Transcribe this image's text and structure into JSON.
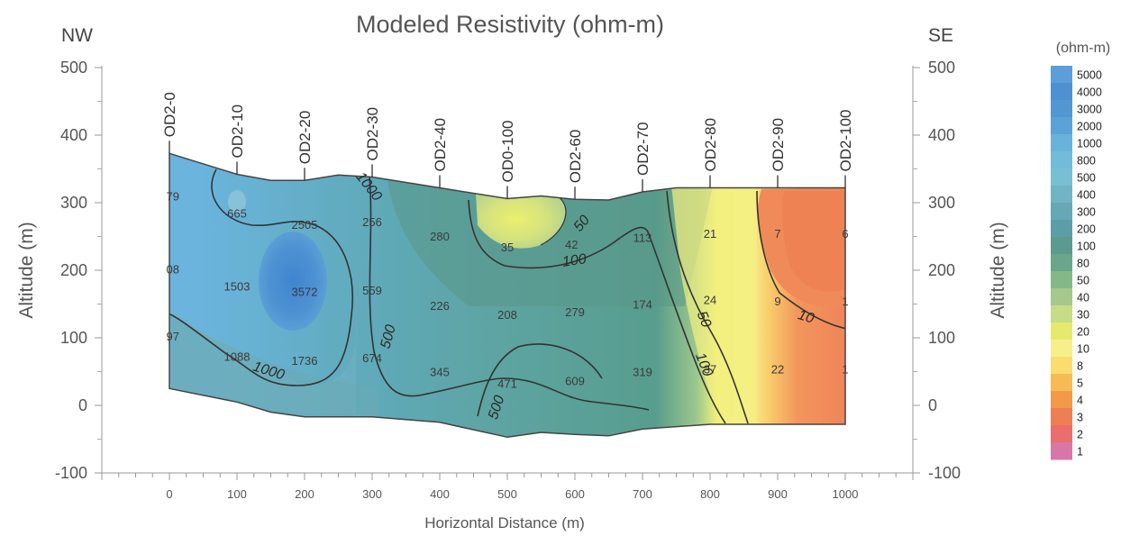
{
  "chart_data": {
    "type": "heatmap",
    "title": "Modeled Resistivity (ohm-m)",
    "left_direction": "NW",
    "right_direction": "SE",
    "xlabel": "Horizontal Distance (m)",
    "ylabel": "Altitude (m)",
    "xlim": [
      -100,
      1100
    ],
    "ylim": [
      -100,
      500
    ],
    "x_ticks": [
      0,
      100,
      200,
      300,
      400,
      500,
      600,
      700,
      800,
      900,
      1000
    ],
    "y_ticks": [
      -100,
      0,
      100,
      200,
      300,
      400,
      500
    ],
    "y_tick_labels": [
      "-100",
      "0",
      "100",
      "200",
      "300",
      "400",
      "500"
    ],
    "stations": [
      {
        "name": "OD2-0",
        "x": 0
      },
      {
        "name": "OD2-10",
        "x": 100
      },
      {
        "name": "OD2-20",
        "x": 200
      },
      {
        "name": "OD2-30",
        "x": 300
      },
      {
        "name": "OD2-40",
        "x": 400
      },
      {
        "name": "OD0-100",
        "x": 500
      },
      {
        "name": "OD2-60",
        "x": 600
      },
      {
        "name": "OD2-70",
        "x": 700
      },
      {
        "name": "OD2-80",
        "x": 800
      },
      {
        "name": "OD2-90",
        "x": 900
      },
      {
        "name": "OD2-100",
        "x": 1000
      }
    ],
    "surface_profile": [
      [
        0,
        373
      ],
      [
        100,
        342
      ],
      [
        150,
        333
      ],
      [
        200,
        333
      ],
      [
        250,
        341
      ],
      [
        300,
        338
      ],
      [
        400,
        322
      ],
      [
        500,
        306
      ],
      [
        550,
        310
      ],
      [
        600,
        305
      ],
      [
        650,
        304
      ],
      [
        700,
        316
      ],
      [
        750,
        322
      ],
      [
        800,
        322
      ],
      [
        900,
        322
      ],
      [
        1000,
        322
      ]
    ],
    "bottom_profile": [
      [
        0,
        25
      ],
      [
        100,
        5
      ],
      [
        150,
        -10
      ],
      [
        200,
        -17
      ],
      [
        300,
        -17
      ],
      [
        400,
        -25
      ],
      [
        500,
        -47
      ],
      [
        550,
        -40
      ],
      [
        600,
        -43
      ],
      [
        650,
        -45
      ],
      [
        700,
        -35
      ],
      [
        800,
        -28
      ],
      [
        1000,
        -28
      ]
    ],
    "colorbar": {
      "title": "(ohm-m)",
      "levels": [
        "5000",
        "4000",
        "3000",
        "2000",
        "1000",
        "800",
        "500",
        "400",
        "300",
        "200",
        "100",
        "80",
        "50",
        "40",
        "30",
        "20",
        "10",
        "8",
        "5",
        "4",
        "3",
        "2",
        "1"
      ],
      "colors": [
        "#5b9ed9",
        "#4f90d0",
        "#5297d1",
        "#5ba2d6",
        "#6bb2db",
        "#73bbd9",
        "#78bfd3",
        "#71b4c4",
        "#66a8b5",
        "#5d9ea6",
        "#5d9a8e",
        "#6aa58c",
        "#85b889",
        "#a5c98a",
        "#c8db86",
        "#e5ea6e",
        "#f7f089",
        "#fbdc70",
        "#f7bb55",
        "#f39a4a",
        "#ee7f54",
        "#e96e6d",
        "#d877a6"
      ]
    },
    "values": [
      {
        "label": "79",
        "x": 5,
        "y": 310
      },
      {
        "label": "665",
        "x": 100,
        "y": 285
      },
      {
        "label": "2505",
        "x": 200,
        "y": 268
      },
      {
        "label": "256",
        "x": 300,
        "y": 272
      },
      {
        "label": "280",
        "x": 400,
        "y": 251
      },
      {
        "label": "35",
        "x": 500,
        "y": 235
      },
      {
        "label": "42",
        "x": 595,
        "y": 239
      },
      {
        "label": "113",
        "x": 700,
        "y": 249
      },
      {
        "label": "21",
        "x": 800,
        "y": 255
      },
      {
        "label": "7",
        "x": 900,
        "y": 255
      },
      {
        "label": "6",
        "x": 1000,
        "y": 255
      },
      {
        "label": "08",
        "x": 5,
        "y": 202
      },
      {
        "label": "1503",
        "x": 100,
        "y": 177
      },
      {
        "label": "3572",
        "x": 200,
        "y": 169
      },
      {
        "label": "559",
        "x": 300,
        "y": 171
      },
      {
        "label": "226",
        "x": 400,
        "y": 148
      },
      {
        "label": "208",
        "x": 500,
        "y": 135
      },
      {
        "label": "279",
        "x": 600,
        "y": 139
      },
      {
        "label": "174",
        "x": 700,
        "y": 150
      },
      {
        "label": "24",
        "x": 800,
        "y": 157
      },
      {
        "label": "9",
        "x": 900,
        "y": 155
      },
      {
        "label": "1",
        "x": 1000,
        "y": 155
      },
      {
        "label": "97",
        "x": 5,
        "y": 103
      },
      {
        "label": "1088",
        "x": 100,
        "y": 73
      },
      {
        "label": "1736",
        "x": 200,
        "y": 67
      },
      {
        "label": "674",
        "x": 300,
        "y": 71
      },
      {
        "label": "345",
        "x": 400,
        "y": 50
      },
      {
        "label": "471",
        "x": 500,
        "y": 33
      },
      {
        "label": "609",
        "x": 600,
        "y": 37
      },
      {
        "label": "319",
        "x": 700,
        "y": 50
      },
      {
        "label": "37",
        "x": 800,
        "y": 54
      },
      {
        "label": "22",
        "x": 900,
        "y": 54
      },
      {
        "label": "1",
        "x": 1000,
        "y": 54
      }
    ],
    "contour_labels": [
      {
        "label": "1000",
        "x": 290,
        "y": 320,
        "angle": 52
      },
      {
        "label": "500",
        "x": 330,
        "y": 100,
        "angle": -75
      },
      {
        "label": "1000",
        "x": 145,
        "y": 45,
        "angle": 17
      },
      {
        "label": "50",
        "x": 615,
        "y": 265,
        "angle": -50
      },
      {
        "label": "100",
        "x": 600,
        "y": 208,
        "angle": -8
      },
      {
        "label": "50",
        "x": 785,
        "y": 125,
        "angle": 68
      },
      {
        "label": "10",
        "x": 940,
        "y": 125,
        "angle": 17
      },
      {
        "label": "100",
        "x": 785,
        "y": 58,
        "angle": 68
      },
      {
        "label": "500",
        "x": 490,
        "y": -5,
        "angle": -72
      }
    ]
  }
}
